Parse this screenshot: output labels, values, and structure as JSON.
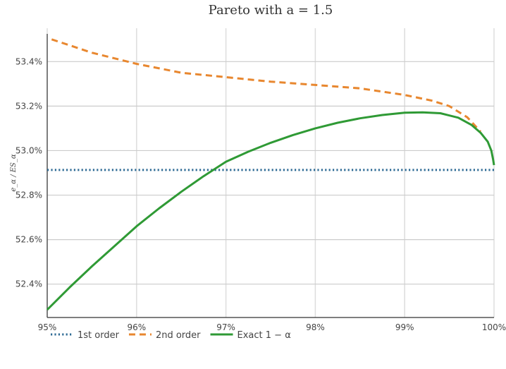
{
  "chart_data": {
    "type": "line",
    "title": "Pareto with a = 1.5",
    "ylabel": "e_α / ES_α",
    "xlim": [
      95,
      100
    ],
    "ylim": [
      52.25,
      53.55
    ],
    "x_tick_values": [
      95,
      96,
      97,
      98,
      99,
      100
    ],
    "x_tick_labels": [
      "95%",
      "96%",
      "97%",
      "98%",
      "99%",
      "100%"
    ],
    "y_tick_values": [
      52.4,
      52.6,
      52.8,
      53.0,
      53.2,
      53.4
    ],
    "y_tick_labels": [
      "52.4%",
      "52.6%",
      "52.8%",
      "53.0%",
      "53.2%",
      "53.4%"
    ],
    "grid": true,
    "legend_position": "bottom-left",
    "series": [
      {
        "name": "1st order",
        "color": "#2f6b95",
        "dash": "dotted",
        "x": [
          95,
          100
        ],
        "y": [
          52.913,
          52.913
        ]
      },
      {
        "name": "2nd order",
        "color": "#e8872f",
        "dash": "dashed",
        "x": [
          95.05,
          95.5,
          96.0,
          96.5,
          97.0,
          97.5,
          98.0,
          98.5,
          99.0,
          99.3,
          99.5,
          99.7,
          99.85
        ],
        "y": [
          53.5,
          53.44,
          53.39,
          53.35,
          53.33,
          53.31,
          53.295,
          53.28,
          53.25,
          53.225,
          53.2,
          53.15,
          53.085
        ]
      },
      {
        "name": "Exact 1 − α",
        "color": "#2f9a35",
        "dash": "solid",
        "x": [
          95.0,
          95.25,
          95.5,
          95.75,
          96.0,
          96.25,
          96.5,
          96.75,
          97.0,
          97.25,
          97.5,
          97.75,
          98.0,
          98.25,
          98.5,
          98.75,
          99.0,
          99.2,
          99.4,
          99.6,
          99.75,
          99.85,
          99.93,
          99.97,
          99.99,
          100.0
        ],
        "y": [
          52.285,
          52.385,
          52.48,
          52.57,
          52.66,
          52.74,
          52.815,
          52.885,
          52.95,
          52.995,
          53.035,
          53.07,
          53.1,
          53.125,
          53.145,
          53.16,
          53.17,
          53.172,
          53.168,
          53.148,
          53.115,
          53.08,
          53.04,
          53.0,
          52.96,
          52.935
        ]
      }
    ]
  }
}
